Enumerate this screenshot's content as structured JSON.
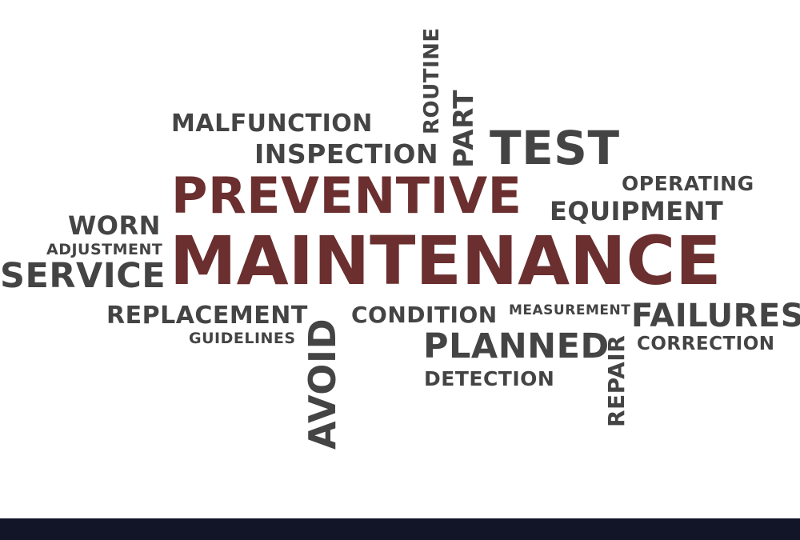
{
  "word_cloud": {
    "words": {
      "malfunction": "MALFUNCTION",
      "inspection": "INSPECTION",
      "routine": "ROUTINE",
      "part": "PART",
      "test": "TEST",
      "preventive": "PREVENTIVE",
      "operating": "OPERATING",
      "equipment": "EQUIPMENT",
      "worn": "WORN",
      "adjustment": "ADJUSTMENT",
      "service": "SERVICE",
      "maintenance": "MAINTENANCE",
      "replacement": "REPLACEMENT",
      "guidelines": "GUIDELINES",
      "avoid": "AVOID",
      "condition": "CONDITION",
      "measurement": "MEASUREMENT",
      "failures": "FAILURES",
      "planned": "PLANNED",
      "detection": "DETECTION",
      "repair": "REPAIR",
      "correction": "CORRECTION"
    },
    "colors": {
      "primary_words": "#6b2f2f",
      "secondary_words": "#444444",
      "footer_bar": "#121528"
    }
  }
}
